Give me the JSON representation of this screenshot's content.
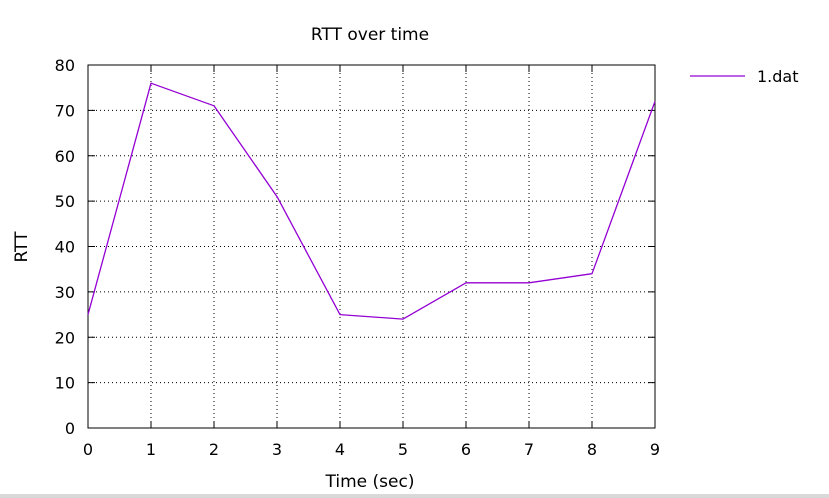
{
  "chart_data": {
    "type": "line",
    "title": "RTT over time",
    "xlabel": "Time (sec)",
    "ylabel": "RTT",
    "xlim": [
      0,
      9
    ],
    "ylim": [
      0,
      80
    ],
    "xticks": [
      "0",
      "1",
      "2",
      "3",
      "4",
      "5",
      "6",
      "7",
      "8",
      "9"
    ],
    "yticks": [
      "0",
      "10",
      "20",
      "30",
      "40",
      "50",
      "60",
      "70",
      "80"
    ],
    "grid": true,
    "legend_position": "top-right (outside plot)",
    "series": [
      {
        "name": "1.dat",
        "color": "#9400d3",
        "x": [
          0,
          1,
          2,
          3,
          4,
          5,
          6,
          7,
          8,
          9
        ],
        "y": [
          25,
          76,
          71,
          51,
          25,
          24,
          32,
          32,
          34,
          72
        ]
      }
    ]
  }
}
